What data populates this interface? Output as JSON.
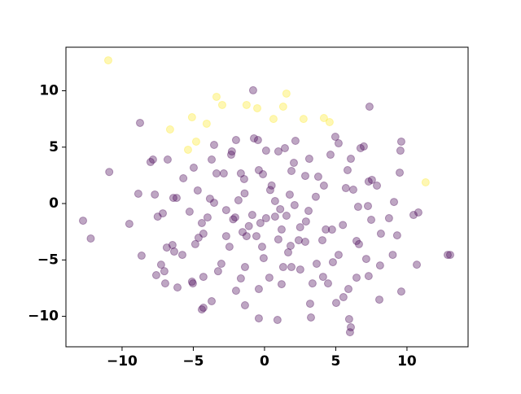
{
  "chart_data": {
    "type": "scatter",
    "alpha": 0.35,
    "xlim": [
      -13.94,
      14.29
    ],
    "ylim": [
      -12.7,
      13.86
    ],
    "xticks": [
      {
        "value": -10,
        "label": "−10"
      },
      {
        "value": -5,
        "label": "−5"
      },
      0,
      5,
      10
    ],
    "yticks": [
      {
        "value": -10,
        "label": "−10"
      },
      {
        "value": -5,
        "label": "−5"
      },
      0,
      5,
      10
    ],
    "series": [
      {
        "color": "#440154",
        "x": [
          -10.9,
          -8.74,
          -12.74,
          -12.2,
          -9.49,
          -8.86,
          -8.63,
          -8,
          -7.83,
          -6.8,
          -7.7,
          -7.5,
          -7.14,
          -6.4,
          -6.17,
          -5.7,
          -4.97,
          -6.86,
          -6.46,
          -6.34,
          -5.77,
          -7.26,
          -7.03,
          -7.6,
          -6.97,
          -6.11,
          -5.03,
          -5.09,
          -4.29,
          -4.29,
          -4.4,
          -4.86,
          -4.63,
          -4.29,
          -5.26,
          -4.4,
          -4,
          -3.83,
          -3.54,
          -4.69,
          -3.71,
          -3.54,
          -3.37,
          -2.34,
          -2.29,
          -2,
          -2.86,
          -1.66,
          -1.43,
          -0.74,
          -0.46,
          -0.8,
          0.11,
          -0.4,
          -0.11,
          0.97,
          1.43,
          1.89,
          2.17,
          3.14,
          2.06,
          2.86,
          3.77,
          4.17,
          4.63,
          4.97,
          5.2,
          6.06,
          6.74,
          6.97,
          5.83,
          5.71,
          7.31,
          7.54,
          7.89,
          9.49,
          9.6,
          9.54,
          7.37,
          9.09,
          8.74,
          10.46,
          10.8,
          7.49,
          7.26,
          6.57,
          6.23,
          9.31,
          8.17,
          6.46,
          6.63,
          7.14,
          8.11,
          9,
          10.69,
          12.86,
          13.03,
          9.6,
          8.06,
          7.31,
          6.46,
          5.89,
          5.54,
          5.94,
          6,
          6.06,
          5.03,
          4.46,
          4.11,
          3.66,
          4.8,
          5.2,
          4.74,
          4.06,
          3.2,
          3.26,
          3.37,
          2.51,
          1.89,
          1.66,
          2.4,
          2.86,
          2.91,
          3.09,
          2.11,
          1.77,
          0.74,
          0.74,
          0.11,
          -0.29,
          -0.86,
          -0.57,
          -1.26,
          -1.54,
          -2.06,
          -1.83,
          -2.69,
          -2.69,
          -2.46,
          -3.03,
          -3.26,
          -1.37,
          -1.66,
          -2,
          -1.37,
          -0.4,
          0.91,
          1.2,
          0.34,
          -0.4,
          -0.06,
          -0.17,
          1.31,
          0.97,
          1.54,
          1.83,
          -3.71,
          -1.4,
          0.5,
          1.1,
          2.5,
          3.6,
          4.3,
          5.5,
          -2.2,
          -1.1,
          0.4,
          1.2
        ],
        "values": [
          2.8,
          7.15,
          -1.52,
          -3.1,
          -1.8,
          0.87,
          -4.62,
          3.68,
          3.9,
          3.9,
          0.8,
          -1.16,
          -0.87,
          0.5,
          0.5,
          2.24,
          3.18,
          -3.9,
          -3.68,
          -4.26,
          -4.55,
          -5.42,
          -6,
          -6.35,
          -7.08,
          -7.44,
          -7.08,
          -6.93,
          -6.5,
          -9.24,
          -9.39,
          -3.6,
          -3.03,
          -2.67,
          -0.72,
          -1.73,
          -1.23,
          0.43,
          0.07,
          1.16,
          3.9,
          5.2,
          2.67,
          4.33,
          4.62,
          5.63,
          2.67,
          2.67,
          2.17,
          5.78,
          5.63,
          10.04,
          4.69,
          2.96,
          2.6,
          4.62,
          4.91,
          2.89,
          5.56,
          3.97,
          3.61,
          2.45,
          2.38,
          1.59,
          4.33,
          5.92,
          5.34,
          3.97,
          4.91,
          5.06,
          2.96,
          1.37,
          1.95,
          2.1,
          1.59,
          2.74,
          5.49,
          4.69,
          8.59,
          0.14,
          -1.3,
          -1.01,
          -0.79,
          -1.44,
          -0.22,
          -0.29,
          1.23,
          -2.82,
          -2.67,
          -3.32,
          -3.6,
          -4.91,
          -5.49,
          -4.55,
          -5.42,
          -4.55,
          -4.55,
          -7.8,
          -8.52,
          -6.43,
          -6.57,
          -7.58,
          -8.3,
          -10.25,
          -11.41,
          -10.97,
          -8.81,
          -7.08,
          -6.5,
          -5.34,
          -5.2,
          -4.55,
          -2.31,
          -3.25,
          -8.88,
          -10.1,
          -7.08,
          -5.85,
          -5.63,
          -4.33,
          -3.25,
          -3.39,
          -1.59,
          -0.65,
          -0.14,
          0.79,
          0.22,
          -1.16,
          -1.3,
          -1.73,
          -1.01,
          -2.89,
          -2.89,
          -2.53,
          -1.23,
          0.29,
          -0.58,
          -2.89,
          -3.83,
          -5.34,
          -6,
          -5.63,
          -6.64,
          -7.73,
          -9.02,
          -10.18,
          -10.32,
          -7.15,
          -6.57,
          -7.58,
          -4.84,
          -3.83,
          -5.63,
          -3.18,
          -1.08,
          -3.75,
          -8.66,
          0.9,
          1.6,
          -0.5,
          -2.1,
          0.6,
          -2.3,
          -1.9,
          -1.4,
          -2,
          1.2,
          -2.3
        ]
      },
      {
        "color": "#fde725",
        "x": [
          -10.97,
          -3.37,
          -2.97,
          -1.26,
          -0.51,
          1.31,
          1.54,
          0.63,
          2.74,
          4.17,
          4.57,
          -4.06,
          -5.09,
          -6.63,
          -4.8,
          -5.37,
          11.31
        ],
        "values": [
          12.7,
          9.46,
          8.74,
          8.74,
          8.45,
          8.59,
          9.75,
          7.5,
          7.5,
          7.58,
          7.22,
          7.08,
          7.65,
          6.57,
          5.49,
          4.77,
          1.88
        ]
      }
    ]
  }
}
